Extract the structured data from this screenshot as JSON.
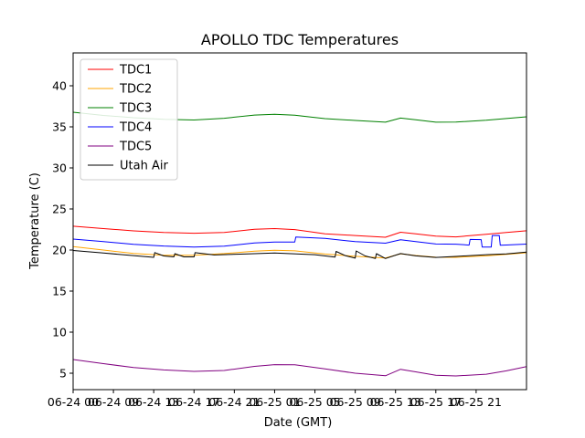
{
  "chart_data": {
    "type": "line",
    "title": "APOLLO TDC Temperatures",
    "xlabel": "Date (GMT)",
    "ylabel": "Temperature (C)",
    "ylim": [
      3,
      44
    ],
    "xlim": [
      0,
      45
    ],
    "y_ticks": [
      5,
      10,
      15,
      20,
      25,
      30,
      35,
      40
    ],
    "x_ticks": [
      {
        "x": 0,
        "label": "06-24 00"
      },
      {
        "x": 4,
        "label": "06-24 09"
      },
      {
        "x": 8,
        "label": "06-24 13"
      },
      {
        "x": 12,
        "label": "06-24 17"
      },
      {
        "x": 16,
        "label": "06-24 21"
      },
      {
        "x": 20,
        "label": "06-25 01"
      },
      {
        "x": 24,
        "label": "06-25 05"
      },
      {
        "x": 28,
        "label": "06-25 09"
      },
      {
        "x": 32,
        "label": "06-25 13"
      },
      {
        "x": 36,
        "label": "06-25 17"
      },
      {
        "x": 40,
        "label": "06-25 21"
      }
    ],
    "legend_position": "top-left",
    "series": [
      {
        "name": "TDC1",
        "color": "#ff0000",
        "x": [
          0,
          3,
          6,
          9,
          12,
          15,
          18,
          20,
          22,
          25,
          28,
          31,
          32.5,
          34,
          36,
          38,
          41,
          43,
          45
        ],
        "y": [
          22.9,
          22.6,
          22.3,
          22.1,
          22.0,
          22.1,
          22.5,
          22.6,
          22.5,
          22.0,
          21.8,
          21.6,
          22.2,
          22.0,
          21.7,
          21.6,
          21.9,
          22.1,
          22.3
        ]
      },
      {
        "name": "TDC2",
        "color": "#ffa500",
        "x": [
          0,
          3,
          6,
          9,
          12,
          15,
          18,
          20,
          22,
          25,
          28,
          31,
          32.5,
          34,
          36,
          38,
          41,
          43,
          45
        ],
        "y": [
          20.4,
          20.0,
          19.6,
          19.4,
          19.4,
          19.6,
          19.9,
          20.0,
          19.9,
          19.5,
          19.2,
          19.0,
          19.5,
          19.3,
          19.1,
          19.1,
          19.3,
          19.5,
          19.7
        ]
      },
      {
        "name": "TDC3",
        "color": "#008000",
        "x": [
          0,
          3,
          6,
          9,
          12,
          15,
          18,
          20,
          22,
          25,
          28,
          31,
          32.5,
          34,
          36,
          38,
          41,
          43,
          45
        ],
        "y": [
          36.8,
          36.4,
          36.1,
          35.9,
          35.8,
          36.0,
          36.4,
          36.5,
          36.4,
          36.0,
          35.8,
          35.6,
          36.1,
          35.9,
          35.6,
          35.6,
          35.8,
          36.0,
          36.2
        ]
      },
      {
        "name": "TDC4",
        "color": "#0000ff",
        "x": [
          0,
          3,
          6,
          9,
          12,
          15,
          18,
          20,
          22,
          22.1,
          25,
          28,
          31,
          32.5,
          34,
          36,
          38,
          39.3,
          39.4,
          40.5,
          40.6,
          41.5,
          41.6,
          42.3,
          42.4,
          43,
          45
        ],
        "y": [
          21.3,
          21.0,
          20.7,
          20.5,
          20.4,
          20.5,
          20.9,
          21.0,
          21.0,
          21.6,
          21.4,
          21.0,
          20.8,
          21.2,
          21.0,
          20.7,
          20.7,
          20.6,
          21.3,
          21.3,
          20.4,
          20.4,
          21.8,
          21.8,
          20.6,
          20.6,
          20.7
        ]
      },
      {
        "name": "TDC5",
        "color": "#800080",
        "x": [
          0,
          3,
          6,
          9,
          12,
          15,
          18,
          20,
          22,
          25,
          28,
          31,
          32.5,
          34,
          36,
          38,
          41,
          43,
          45
        ],
        "y": [
          6.7,
          6.2,
          5.7,
          5.4,
          5.2,
          5.3,
          5.8,
          6.0,
          6.0,
          5.5,
          5.0,
          4.7,
          5.5,
          5.2,
          4.8,
          4.7,
          4.9,
          5.3,
          5.8
        ]
      },
      {
        "name": "Utah Air",
        "color": "#000000",
        "x": [
          0,
          3,
          6,
          8,
          8.1,
          9,
          10,
          10.1,
          11,
          12,
          12.1,
          14,
          17,
          20,
          24,
          26,
          26.1,
          27,
          28,
          28.1,
          29,
          30,
          30.1,
          31,
          32.5,
          34,
          36,
          38,
          41,
          43,
          45
        ],
        "y": [
          19.9,
          19.6,
          19.3,
          19.1,
          19.7,
          19.3,
          19.2,
          19.6,
          19.2,
          19.2,
          19.7,
          19.4,
          19.5,
          19.6,
          19.4,
          19.1,
          19.8,
          19.3,
          19.0,
          19.9,
          19.3,
          19.0,
          19.6,
          19.0,
          19.6,
          19.3,
          19.1,
          19.2,
          19.4,
          19.5,
          19.7
        ]
      }
    ]
  }
}
